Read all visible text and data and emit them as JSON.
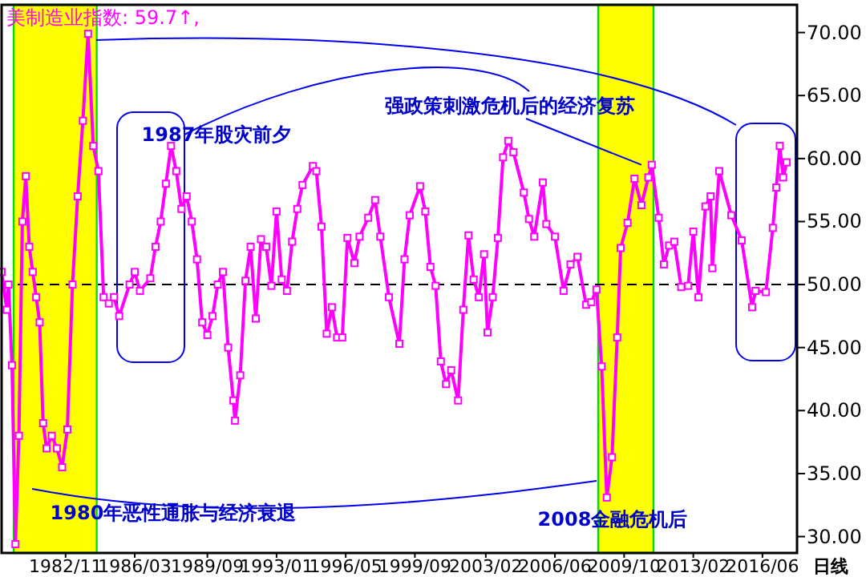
{
  "chart_data": {
    "type": "line",
    "title": "美制造业指数: 59.7↑,",
    "x": [
      "1979-10",
      "1980-01",
      "1980-02",
      "1980-04",
      "1980-06",
      "1980-08",
      "1980-10",
      "1980-12",
      "1981-02",
      "1981-04",
      "1981-06",
      "1981-08",
      "1981-10",
      "1981-12",
      "1982-03",
      "1982-06",
      "1982-09",
      "1982-12",
      "1983-03",
      "1983-06",
      "1983-09",
      "1983-12",
      "1984-03",
      "1984-06",
      "1984-09",
      "1984-12",
      "1985-03",
      "1985-06",
      "1985-12",
      "1986-03",
      "1986-06",
      "1986-12",
      "1987-03",
      "1987-06",
      "1987-09",
      "1987-12",
      "1988-03",
      "1988-06",
      "1988-09",
      "1988-12",
      "1989-03",
      "1989-06",
      "1989-09",
      "1989-12",
      "1990-03",
      "1990-06",
      "1990-09",
      "1990-12",
      "1991-01",
      "1991-04",
      "1991-07",
      "1991-10",
      "1992-01",
      "1992-04",
      "1992-07",
      "1992-10",
      "1993-01",
      "1993-04",
      "1993-07",
      "1993-10",
      "1994-01",
      "1994-04",
      "1994-10",
      "1994-12",
      "1995-03",
      "1995-06",
      "1995-09",
      "1995-12",
      "1996-03",
      "1996-06",
      "1996-10",
      "1997-01",
      "1997-06",
      "1997-10",
      "1998-01",
      "1998-06",
      "1998-12",
      "1999-03",
      "1999-06",
      "1999-12",
      "2000-03",
      "2000-06",
      "2000-09",
      "2000-12",
      "2001-03",
      "2001-06",
      "2001-10",
      "2002-01",
      "2002-04",
      "2002-07",
      "2002-10",
      "2003-01",
      "2003-03",
      "2003-06",
      "2003-09",
      "2003-12",
      "2004-03",
      "2004-06",
      "2004-12",
      "2005-03",
      "2005-06",
      "2005-11",
      "2006-01",
      "2006-06",
      "2006-11",
      "2007-03",
      "2007-07",
      "2007-12",
      "2008-03",
      "2008-06",
      "2008-09",
      "2008-12",
      "2009-03",
      "2009-06",
      "2009-08",
      "2009-12",
      "2010-04",
      "2010-08",
      "2010-12",
      "2011-02",
      "2011-06",
      "2011-09",
      "2011-12",
      "2012-03",
      "2012-07",
      "2012-11",
      "2013-02",
      "2013-05",
      "2013-09",
      "2013-12",
      "2014-01",
      "2014-05",
      "2014-12",
      "2015-06",
      "2015-12",
      "2016-02",
      "2016-08",
      "2016-12",
      "2017-02",
      "2017-04",
      "2017-06",
      "2017-08"
    ],
    "series": [
      {
        "color": "#ff00ff",
        "values": [
          51,
          48,
          50,
          43.6,
          29.4,
          38,
          55,
          58.6,
          53,
          51,
          49,
          47,
          39,
          37,
          38,
          37,
          35.5,
          38.5,
          50,
          57,
          63,
          69.9,
          61,
          59,
          49,
          48.5,
          49,
          47.5,
          50,
          51,
          49.5,
          50.5,
          53,
          55,
          58,
          61,
          59,
          56,
          57,
          55,
          52,
          47,
          46,
          47.5,
          50,
          51,
          45,
          40.8,
          39.2,
          42.8,
          50.3,
          53,
          47.3,
          53.6,
          53,
          49.9,
          55.8,
          50.4,
          49.5,
          53.4,
          56,
          57.9,
          59.4,
          59,
          54.6,
          46.1,
          48.2,
          45.8,
          45.8,
          53.7,
          51.7,
          53.8,
          55.3,
          56.7,
          53.8,
          49,
          45.3,
          52,
          55.5,
          57.8,
          55.8,
          51.4,
          49.9,
          43.9,
          42.1,
          43.2,
          40.8,
          48,
          53.9,
          50.4,
          49,
          52.4,
          46.2,
          49,
          53.7,
          60.1,
          61.4,
          60.5,
          57.3,
          55.2,
          53.8,
          58.1,
          54.8,
          53.8,
          49.5,
          51.6,
          52.2,
          48.4,
          48.6,
          49.6,
          43.5,
          33.1,
          36.3,
          45.8,
          52.9,
          54.9,
          58.4,
          56.3,
          58.5,
          59.5,
          55.3,
          51.6,
          53.1,
          53.4,
          49.8,
          49.9,
          54.2,
          49,
          56.2,
          57,
          51.3,
          59,
          55.5,
          53.5,
          48.2,
          49.5,
          49.4,
          54.5,
          57.7,
          61,
          58.5,
          59.7
        ]
      }
    ],
    "xlim": [
      "1979-10",
      "2018-02"
    ],
    "xticks": [
      {
        "value": "1982-11",
        "label": "1982/11"
      },
      {
        "value": "1986-03",
        "label": "1986/03"
      },
      {
        "value": "1989-09",
        "label": "1989/09"
      },
      {
        "value": "1993-01",
        "label": "1993/01"
      },
      {
        "value": "1996-05",
        "label": "1996/05"
      },
      {
        "value": "1999-09",
        "label": "1999/09"
      },
      {
        "value": "2003-02",
        "label": "2003/02"
      },
      {
        "value": "2006-06",
        "label": "2006/06"
      },
      {
        "value": "2009-10",
        "label": "2009/10"
      },
      {
        "value": "2013-02",
        "label": "2013/02"
      },
      {
        "value": "2016-06",
        "label": "2016/06"
      }
    ],
    "ylim": [
      28.7,
      72.2
    ],
    "yticks": [
      {
        "value": 30,
        "label": "30.00"
      },
      {
        "value": 35,
        "label": "35.00"
      },
      {
        "value": 40,
        "label": "40.00"
      },
      {
        "value": 45,
        "label": "45.00"
      },
      {
        "value": 50,
        "label": "50.00"
      },
      {
        "value": 55,
        "label": "55.00"
      },
      {
        "value": 60,
        "label": "60.00"
      },
      {
        "value": 65,
        "label": "65.00"
      },
      {
        "value": 70,
        "label": "70.00"
      }
    ],
    "ref_lines": [
      {
        "axis": "y",
        "value": 50,
        "color": "#000000",
        "line_style": "dashed"
      }
    ],
    "bands": [
      {
        "axis": "x",
        "from": "1980-05",
        "to": "1984-05",
        "color": "#ffff00"
      },
      {
        "axis": "x",
        "from": "2008-07",
        "to": "2011-03",
        "color": "#ffff00"
      }
    ],
    "annotations": [
      "1987年股灾前夕",
      {
        "text": "强政策刺激危机后的经济复苏",
        "x": "2010-08",
        "y": 59.5
      },
      "1980年恶性通胀与经济衰退",
      "2008金融危机后",
      "日线"
    ],
    "marker": "square",
    "line_style": "solid",
    "grid": false
  }
}
